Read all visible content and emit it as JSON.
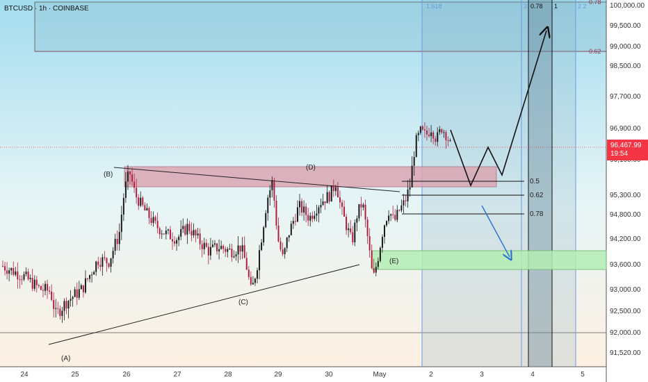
{
  "header": {
    "symbol_title": "BTCUSD · 1h · COINBASE"
  },
  "price_tag": {
    "price": "96,467.99",
    "countdown": "19:54",
    "color": "#f23645"
  },
  "colors": {
    "up": "#1a1a1a",
    "down": "#b01e3f",
    "resistance_zone": "#d8a8b4",
    "support_zone": "#b4ecb4",
    "fib_box": "#8fb4c8",
    "projection_arrow": "#2a6fd6",
    "fib_line": "#6a9be0",
    "bg_top": "#a9e0f0",
    "bg_bottom": "#fdf0e4"
  },
  "chart_data": {
    "type": "candlestick",
    "title": "",
    "y_ticks": [
      100000,
      99500,
      99000,
      98500,
      97700,
      96900,
      96100,
      95300,
      94800,
      94200,
      93600,
      93000,
      92500,
      92000,
      91520
    ],
    "y_tick_labels": [
      "100,000.00",
      "99,500.00",
      "99,000.00",
      "98,500.00",
      "97,700.00",
      "96,900.00",
      "96,100.00",
      "95,300.00",
      "94,800.00",
      "94,200.00",
      "93,600.00",
      "93,000.00",
      "92,500.00",
      "92,000.00",
      "91,520.00"
    ],
    "x_ticks": [
      "24",
      "25",
      "26",
      "27",
      "28",
      "29",
      "30",
      "May",
      "2",
      "3",
      "4",
      "5"
    ],
    "current_price": 96467.99,
    "candle_anchors": [
      {
        "t": 0,
        "p": 93550
      },
      {
        "t": 4,
        "p": 93300
      },
      {
        "t": 7,
        "p": 93000
      },
      {
        "t": 9,
        "p": 92950
      },
      {
        "t": 10,
        "p": 92400
      },
      {
        "t": 12,
        "p": 92700
      },
      {
        "t": 15,
        "p": 93000
      },
      {
        "t": 18,
        "p": 93700
      },
      {
        "t": 20,
        "p": 93650
      },
      {
        "t": 22,
        "p": 94300
      },
      {
        "t": 23,
        "p": 95400
      },
      {
        "t": 24,
        "p": 95800
      },
      {
        "t": 25,
        "p": 95300
      },
      {
        "t": 27,
        "p": 94850
      },
      {
        "t": 29,
        "p": 94500
      },
      {
        "t": 31,
        "p": 94300
      },
      {
        "t": 33,
        "p": 94200
      },
      {
        "t": 35,
        "p": 94500
      },
      {
        "t": 37,
        "p": 94150
      },
      {
        "t": 39,
        "p": 93900
      },
      {
        "t": 41,
        "p": 94000
      },
      {
        "t": 43,
        "p": 93900
      },
      {
        "t": 45,
        "p": 94000
      },
      {
        "t": 46,
        "p": 93600
      },
      {
        "t": 47,
        "p": 92900
      },
      {
        "t": 48,
        "p": 93500
      },
      {
        "t": 49,
        "p": 94300
      },
      {
        "t": 50,
        "p": 95200
      },
      {
        "t": 51,
        "p": 95600
      },
      {
        "t": 52,
        "p": 94200
      },
      {
        "t": 53,
        "p": 93700
      },
      {
        "t": 54,
        "p": 94300
      },
      {
        "t": 56,
        "p": 95000
      },
      {
        "t": 58,
        "p": 94700
      },
      {
        "t": 60,
        "p": 95100
      },
      {
        "t": 62,
        "p": 95300
      },
      {
        "t": 63,
        "p": 95600
      },
      {
        "t": 64,
        "p": 94900
      },
      {
        "t": 65,
        "p": 94500
      },
      {
        "t": 66,
        "p": 94100
      },
      {
        "t": 67,
        "p": 94800
      },
      {
        "t": 68,
        "p": 95100
      },
      {
        "t": 69,
        "p": 94200
      },
      {
        "t": 70,
        "p": 93200
      },
      {
        "t": 71,
        "p": 93800
      },
      {
        "t": 72,
        "p": 94500
      },
      {
        "t": 73,
        "p": 94900
      },
      {
        "t": 74,
        "p": 94600
      },
      {
        "t": 75,
        "p": 94900
      },
      {
        "t": 76,
        "p": 95100
      },
      {
        "t": 77,
        "p": 95500
      },
      {
        "t": 78,
        "p": 96500
      },
      {
        "t": 79,
        "p": 96800
      },
      {
        "t": 80,
        "p": 96700
      },
      {
        "t": 81,
        "p": 96900
      },
      {
        "t": 82,
        "p": 96600
      },
      {
        "t": 83,
        "p": 96900
      },
      {
        "t": 84,
        "p": 96700
      },
      {
        "t": 85,
        "p": 96300
      }
    ],
    "annotations": {
      "wave_labels": [
        "(A)",
        "(B)",
        "(C)",
        "(D)",
        "(E)"
      ],
      "fib_levels": [
        "0.5",
        "0.62",
        "0.78"
      ],
      "fib_top_labels": [
        "1.618",
        "0.78",
        "1",
        "2.2",
        "0.62"
      ],
      "fib_top_label_top_right": "0.78"
    }
  }
}
